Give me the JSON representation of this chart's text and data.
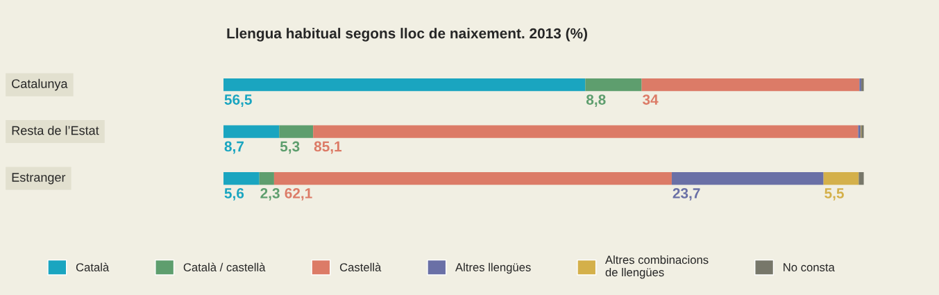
{
  "chart_data": {
    "type": "bar",
    "orientation": "horizontal",
    "stacked": true,
    "title": "Llengua habitual segons lloc de naixement. 2013 (%)",
    "categories": [
      "Catalunya",
      "Resta de l’Estat",
      "Estranger"
    ],
    "series": [
      {
        "name": "Català",
        "color": "#1aa5c0",
        "values": [
          56.5,
          8.7,
          5.6
        ],
        "value_labels": [
          "56,5",
          "8,7",
          "5,6"
        ]
      },
      {
        "name": "Català / castellà",
        "color": "#5e9e6e",
        "values": [
          8.8,
          5.3,
          2.3
        ],
        "value_labels": [
          "8,8",
          "5,3",
          "2,3"
        ]
      },
      {
        "name": "Castellà",
        "color": "#dc7b67",
        "values": [
          34,
          85.1,
          62.1
        ],
        "value_labels": [
          "34",
          "85,1",
          "62,1"
        ]
      },
      {
        "name": "Altres llengües",
        "color": "#6a70a6",
        "values": [
          0.3,
          0.4,
          23.7
        ],
        "value_labels": [
          null,
          null,
          "23,7"
        ]
      },
      {
        "name": "Altres combinacions de llengües",
        "color": "#d4b04a",
        "values": [
          0,
          0.1,
          5.5
        ],
        "value_labels": [
          null,
          null,
          "5,5"
        ]
      },
      {
        "name": "No consta",
        "color": "#77776a",
        "values": [
          0.4,
          0.4,
          0.8
        ],
        "value_labels": [
          null,
          null,
          null
        ]
      }
    ],
    "xlim": [
      0,
      100
    ],
    "legend": "bottom"
  }
}
